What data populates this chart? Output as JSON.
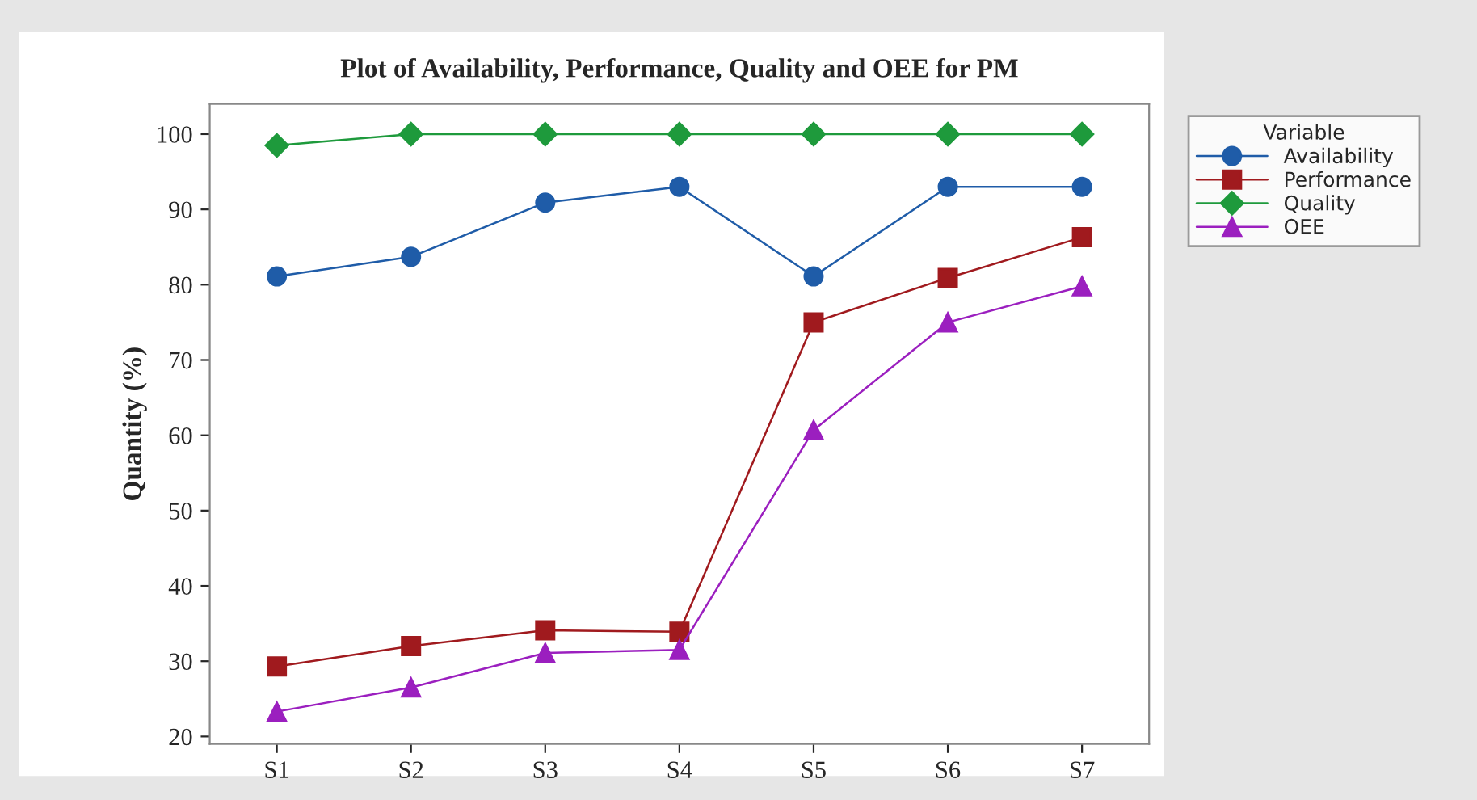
{
  "chart_data": {
    "type": "line",
    "title": "Plot of Availability, Performance, Quality and OEE for PM",
    "ylabel": "Quantity (%)",
    "legend_title": "Variable",
    "categories": [
      "S1",
      "S2",
      "S3",
      "S4",
      "S5",
      "S6",
      "S7"
    ],
    "series": [
      {
        "name": "Availability",
        "color": "#1f5ca8",
        "marker": "circle",
        "values": [
          81.1,
          83.7,
          90.9,
          93,
          81.1,
          93,
          93
        ]
      },
      {
        "name": "Performance",
        "color": "#a01a1e",
        "marker": "square",
        "values": [
          29.3,
          32,
          34.1,
          33.9,
          75,
          80.9,
          86.3
        ]
      },
      {
        "name": "Quality",
        "color": "#1e9a3c",
        "marker": "diamond",
        "values": [
          98.5,
          100,
          100,
          100,
          100,
          100,
          100
        ]
      },
      {
        "name": "OEE",
        "color": "#9b1fbf",
        "marker": "triangle",
        "values": [
          23.3,
          26.5,
          31.1,
          31.5,
          60.7,
          75,
          79.8
        ]
      }
    ],
    "ylim": [
      19,
      104
    ],
    "yticks": [
      20,
      30,
      40,
      50,
      60,
      70,
      80,
      90,
      100
    ],
    "grid": false,
    "legend": "top right",
    "line_style": "solid"
  }
}
